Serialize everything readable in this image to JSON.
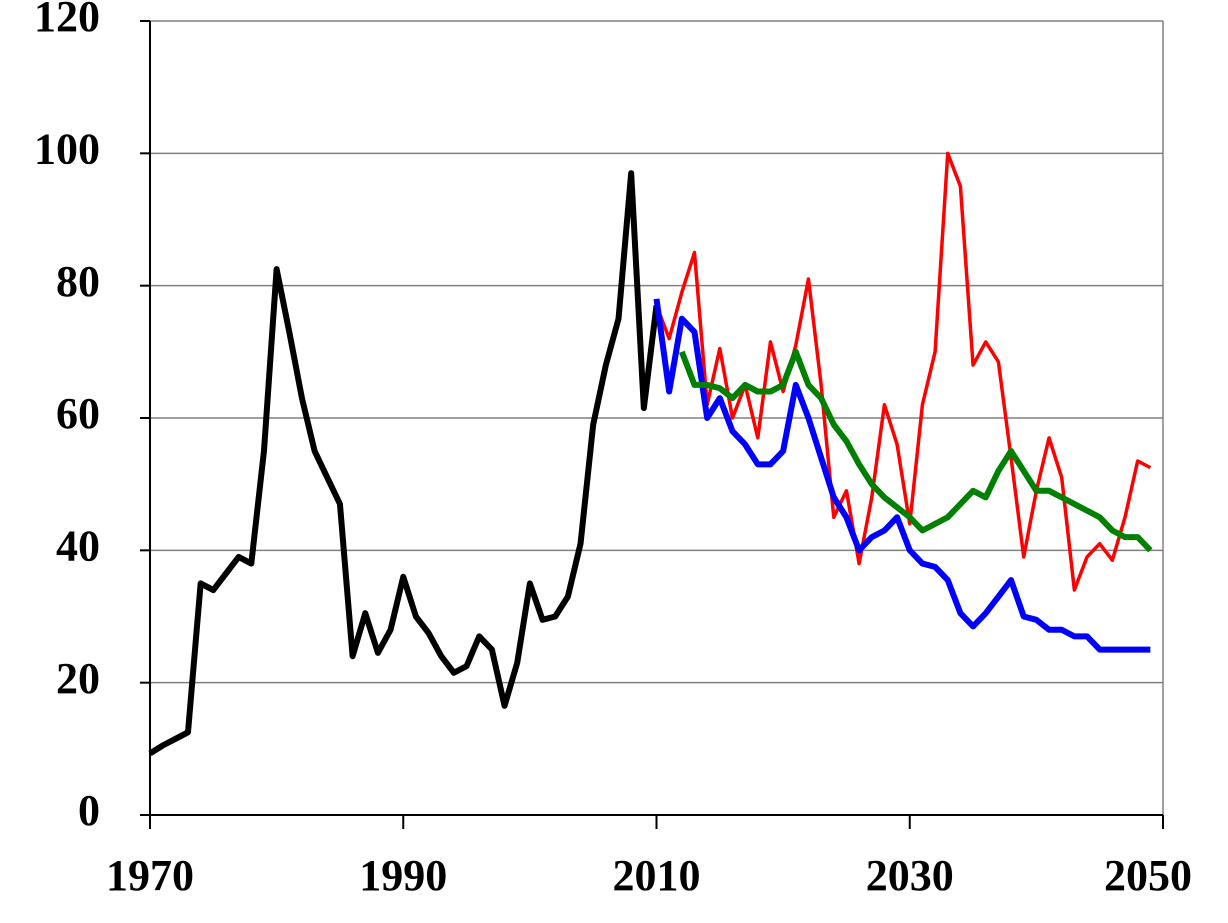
{
  "chart_data": {
    "type": "line",
    "xlim": [
      1970,
      2050
    ],
    "xticks": [
      1970,
      1990,
      2010,
      2030,
      2050
    ],
    "ylim": [
      0,
      120
    ],
    "yticks": [
      0,
      20,
      40,
      60,
      80,
      100,
      120
    ],
    "grid": true,
    "series": [
      {
        "color": "#000000",
        "width": 6,
        "x": [
          1970,
          1971,
          1972,
          1973,
          1974,
          1975,
          1976,
          1977,
          1978,
          1979,
          1980,
          1981,
          1982,
          1983,
          1984,
          1985,
          1986,
          1987,
          1988,
          1989,
          1990,
          1991,
          1992,
          1993,
          1994,
          1995,
          1996,
          1997,
          1998,
          1999,
          2000,
          2001,
          2002,
          2003,
          2004,
          2005,
          2006,
          2007,
          2008,
          2009,
          2010
        ],
        "values": [
          9.3,
          10.5,
          11.5,
          12.5,
          35,
          34,
          36.5,
          39,
          38,
          55,
          82.5,
          73,
          63,
          55,
          51,
          47,
          24,
          30.5,
          24.5,
          28,
          36,
          30,
          27.5,
          24,
          21.5,
          22.5,
          27,
          25,
          16.5,
          23,
          35,
          29.5,
          30,
          33,
          41,
          59,
          68,
          75,
          97,
          61.5,
          77
        ]
      },
      {
        "color": "#ff0000",
        "width": 3.5,
        "x": [
          2010,
          2011,
          2012,
          2013,
          2014,
          2015,
          2016,
          2017,
          2018,
          2019,
          2020,
          2021,
          2022,
          2023,
          2024,
          2025,
          2026,
          2027,
          2028,
          2029,
          2030,
          2031,
          2032,
          2033,
          2034,
          2035,
          2036,
          2037,
          2038,
          2039,
          2040,
          2041,
          2042,
          2043,
          2044,
          2045,
          2046,
          2047,
          2048,
          2049
        ],
        "values": [
          77,
          72,
          79,
          85,
          62,
          70.5,
          60,
          65,
          57,
          71.5,
          64,
          71,
          81,
          65,
          45,
          49,
          38,
          48,
          62,
          56,
          44,
          62,
          70,
          100,
          95,
          68,
          71.5,
          68.5,
          54,
          39,
          49,
          57,
          51,
          34,
          39,
          41,
          38.5,
          45,
          53.5,
          52.5
        ]
      },
      {
        "color": "#0000ff",
        "width": 6,
        "x": [
          2010,
          2011,
          2012,
          2013,
          2014,
          2015,
          2016,
          2017,
          2018,
          2019,
          2020,
          2021,
          2022,
          2023,
          2024,
          2025,
          2026,
          2027,
          2028,
          2029,
          2030,
          2031,
          2032,
          2033,
          2034,
          2035,
          2036,
          2037,
          2038,
          2039,
          2040,
          2041,
          2042,
          2043,
          2044,
          2045,
          2046,
          2047,
          2048,
          2049
        ],
        "values": [
          78,
          64,
          75,
          73,
          60,
          63,
          58,
          56,
          53,
          53,
          55,
          65,
          60,
          54,
          48,
          45,
          40,
          42,
          43,
          45,
          40,
          38,
          37.5,
          35.5,
          30.5,
          28.5,
          30.5,
          33,
          35.5,
          30,
          29.5,
          28,
          28,
          27,
          27,
          25,
          25,
          25,
          25,
          25
        ]
      },
      {
        "color": "#008000",
        "width": 6,
        "x": [
          2012,
          2013,
          2014,
          2015,
          2016,
          2017,
          2018,
          2019,
          2020,
          2021,
          2022,
          2023,
          2024,
          2025,
          2026,
          2027,
          2028,
          2029,
          2030,
          2031,
          2032,
          2033,
          2034,
          2035,
          2036,
          2037,
          2038,
          2039,
          2040,
          2041,
          2042,
          2043,
          2044,
          2045,
          2046,
          2047,
          2048,
          2049
        ],
        "values": [
          70,
          65,
          65,
          64.5,
          63,
          65,
          64,
          64,
          65,
          70,
          65,
          63,
          59,
          56.5,
          53,
          50,
          48,
          46.5,
          45,
          43,
          44,
          45,
          47,
          49,
          48,
          52,
          55,
          52,
          49,
          49,
          48,
          47,
          46,
          45,
          43,
          42,
          42,
          40
        ]
      }
    ]
  }
}
